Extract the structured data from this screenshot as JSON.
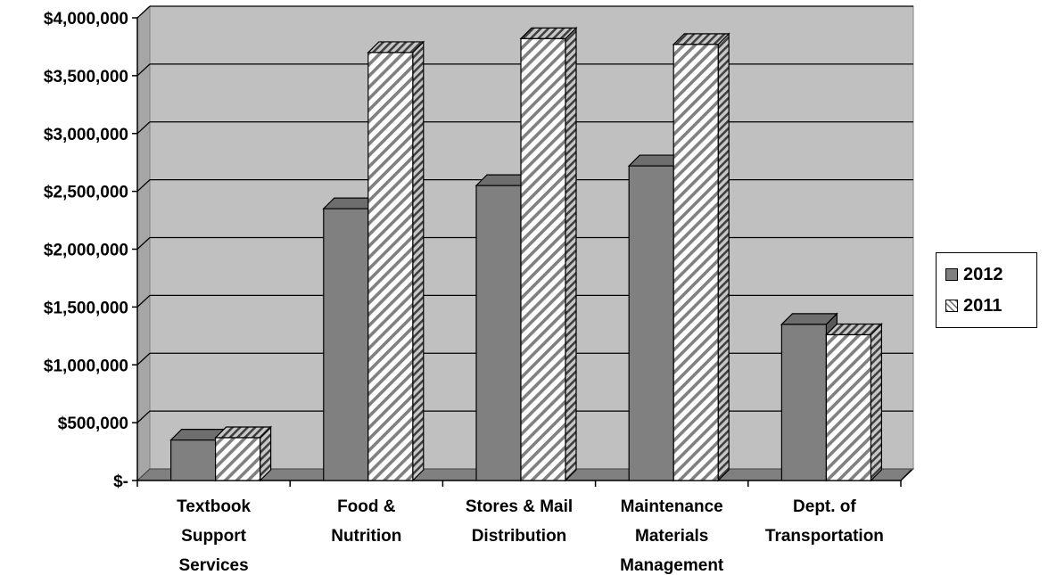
{
  "chart_data": {
    "type": "bar",
    "categories": [
      [
        "Textbook",
        "Support",
        "Services"
      ],
      [
        "Food &",
        "Nutrition"
      ],
      [
        "Stores & Mail",
        "Distribution"
      ],
      [
        "Maintenance",
        "Materials",
        "Management"
      ],
      [
        "Dept. of",
        "Transportation"
      ]
    ],
    "series": [
      {
        "name": "2012",
        "values": [
          350000,
          2350000,
          2550000,
          2720000,
          1350000
        ],
        "color": "#808080",
        "pattern": "solid"
      },
      {
        "name": "2011",
        "values": [
          370000,
          3700000,
          3820000,
          3770000,
          1260000
        ],
        "color": "#ffffff",
        "pattern": "diagonal-hatch"
      }
    ],
    "ylim": [
      0,
      4000000
    ],
    "yticks": [
      0,
      500000,
      1000000,
      1500000,
      2000000,
      2500000,
      3000000,
      3500000,
      4000000
    ],
    "ytick_labels": [
      "$-",
      "$500,000",
      "$1,000,000",
      "$1,500,000",
      "$2,000,000",
      "$2,500,000",
      "$3,000,000",
      "$3,500,000",
      "$4,000,000"
    ],
    "grid": true,
    "three_d": true,
    "legend_position": "right",
    "plot_background": "#c0c0c0"
  },
  "legend": {
    "items": [
      {
        "label": "2012"
      },
      {
        "label": "2011"
      }
    ]
  }
}
